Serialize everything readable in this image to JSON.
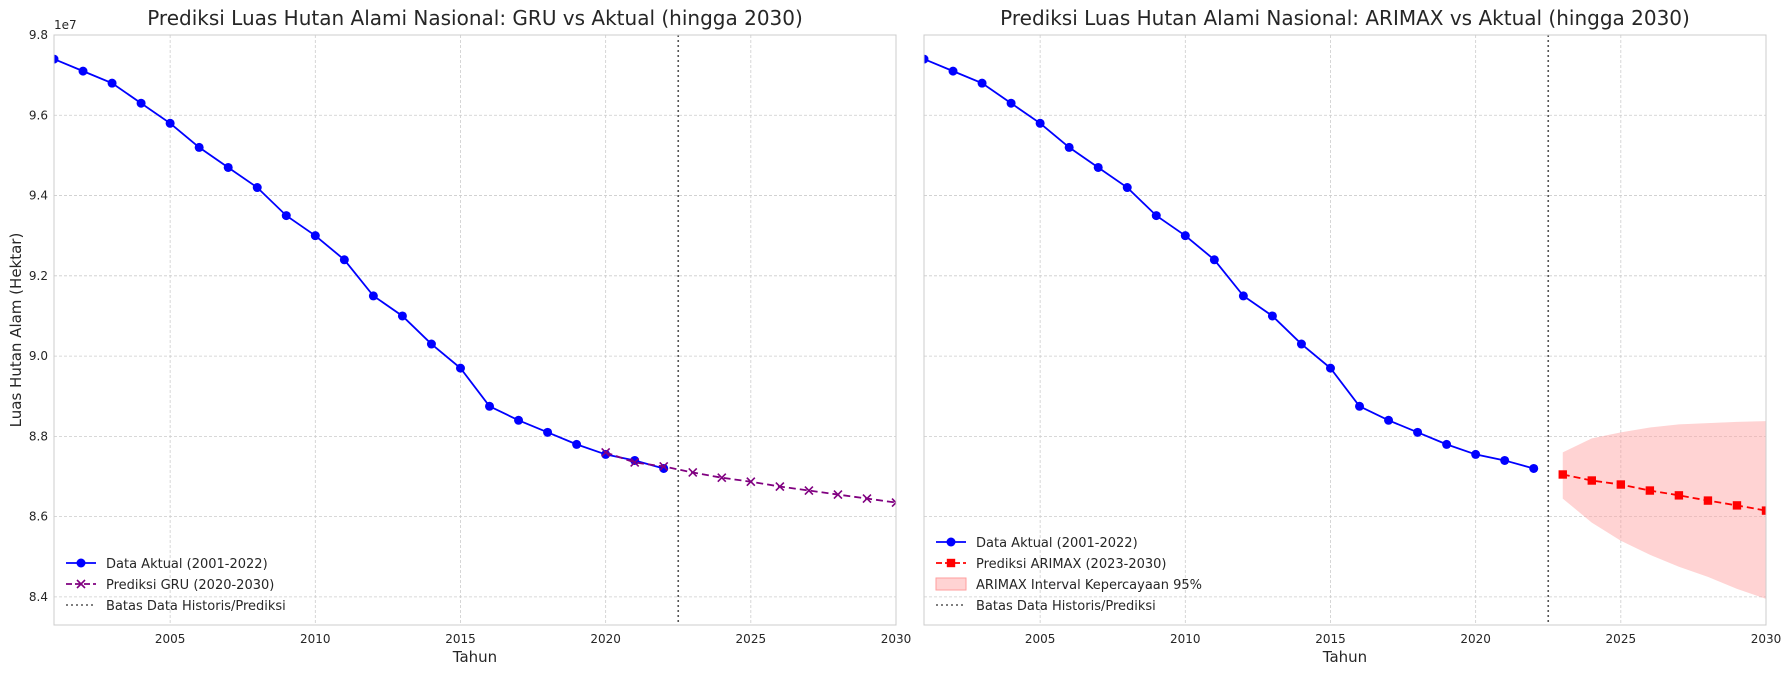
{
  "chart_data": [
    {
      "type": "line",
      "title": "Prediksi Luas Hutan Alami Nasional: GRU vs Aktual (hingga 2030)",
      "xlabel": "Tahun",
      "ylabel": "Luas Hutan Alam (Hektar)",
      "y_multiplier_label": "1e7",
      "xlim": [
        2001,
        2030
      ],
      "ylim": [
        8.33,
        9.8
      ],
      "y_unit_scale": 10000000,
      "xticks": [
        2005,
        2010,
        2015,
        2020,
        2025,
        2030
      ],
      "yticks": [
        8.4,
        8.6,
        8.8,
        9.0,
        9.2,
        9.4,
        9.6,
        9.8
      ],
      "grid": true,
      "legend_position": "lower-left",
      "boundary_x": 2022.5,
      "series": [
        {
          "name": "Data Aktual (2001-2022)",
          "color": "#0000ff",
          "style": "solid",
          "marker": "circle",
          "x": [
            2001,
            2002,
            2003,
            2004,
            2005,
            2006,
            2007,
            2008,
            2009,
            2010,
            2011,
            2012,
            2013,
            2014,
            2015,
            2016,
            2017,
            2018,
            2019,
            2020,
            2021,
            2022
          ],
          "y": [
            9.74,
            9.71,
            9.68,
            9.63,
            9.58,
            9.52,
            9.47,
            9.42,
            9.35,
            9.3,
            9.24,
            9.15,
            9.1,
            9.03,
            8.97,
            8.875,
            8.84,
            8.81,
            8.78,
            8.755,
            8.74,
            8.72
          ]
        },
        {
          "name": "Prediksi GRU (2020-2030)",
          "color": "#800080",
          "style": "dashed",
          "marker": "x",
          "x": [
            2020,
            2021,
            2022,
            2023,
            2024,
            2025,
            2026,
            2027,
            2028,
            2029,
            2030
          ],
          "y": [
            8.76,
            8.735,
            8.725,
            8.71,
            8.697,
            8.687,
            8.675,
            8.665,
            8.655,
            8.645,
            8.635
          ]
        },
        {
          "name": "Batas Data Historis/Prediksi",
          "color": "#555555",
          "style": "dotted",
          "marker": "none"
        }
      ]
    },
    {
      "type": "line",
      "title": "Prediksi Luas Hutan Alami Nasional: ARIMAX vs Aktual (hingga 2030)",
      "xlabel": "Tahun",
      "ylabel": "",
      "xlim": [
        2001,
        2030
      ],
      "ylim": [
        8.33,
        9.8
      ],
      "y_unit_scale": 10000000,
      "xticks": [
        2005,
        2010,
        2015,
        2020,
        2025,
        2030
      ],
      "yticks": [
        8.4,
        8.6,
        8.8,
        9.0,
        9.2,
        9.4,
        9.6,
        9.8
      ],
      "grid": true,
      "legend_position": "lower-left",
      "boundary_x": 2022.5,
      "series": [
        {
          "name": "Data Aktual (2001-2022)",
          "color": "#0000ff",
          "style": "solid",
          "marker": "circle",
          "x": [
            2001,
            2002,
            2003,
            2004,
            2005,
            2006,
            2007,
            2008,
            2009,
            2010,
            2011,
            2012,
            2013,
            2014,
            2015,
            2016,
            2017,
            2018,
            2019,
            2020,
            2021,
            2022
          ],
          "y": [
            9.74,
            9.71,
            9.68,
            9.63,
            9.58,
            9.52,
            9.47,
            9.42,
            9.35,
            9.3,
            9.24,
            9.15,
            9.1,
            9.03,
            8.97,
            8.875,
            8.84,
            8.81,
            8.78,
            8.755,
            8.74,
            8.72
          ]
        },
        {
          "name": "Prediksi ARIMAX (2023-2030)",
          "color": "#ff0000",
          "style": "dashed",
          "marker": "square",
          "x": [
            2023,
            2024,
            2025,
            2026,
            2027,
            2028,
            2029,
            2030
          ],
          "y": [
            8.705,
            8.69,
            8.68,
            8.665,
            8.653,
            8.64,
            8.628,
            8.615
          ]
        },
        {
          "name": "ARIMAX Interval Kepercayaan 95%",
          "color": "#ff9e9e",
          "style": "band",
          "marker": "none",
          "x": [
            2023,
            2024,
            2025,
            2026,
            2027,
            2028,
            2029,
            2030
          ],
          "lower": [
            8.645,
            8.585,
            8.54,
            8.505,
            8.475,
            8.45,
            8.42,
            8.395
          ],
          "upper": [
            8.76,
            8.795,
            8.81,
            8.822,
            8.83,
            8.833,
            8.836,
            8.838
          ]
        },
        {
          "name": "Batas Data Historis/Prediksi",
          "color": "#555555",
          "style": "dotted",
          "marker": "none"
        }
      ]
    }
  ]
}
